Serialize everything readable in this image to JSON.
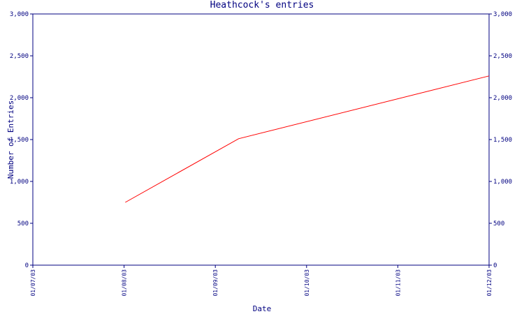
{
  "chart_data": {
    "type": "line",
    "title": "Heathcock's entries",
    "xlabel": "Date",
    "ylabel": "Number of Entries",
    "x_ticks": [
      "01/07/03",
      "01/08/03",
      "01/09/03",
      "01/10/03",
      "01/11/03",
      "01/12/03"
    ],
    "y_ticks": [
      "0",
      "500",
      "1,000",
      "1,500",
      "2,000",
      "2,500",
      "3,000"
    ],
    "ylim": [
      0,
      3000
    ],
    "xlim": [
      "2003-07-01",
      "2003-12-01"
    ],
    "grid": false,
    "series": [
      {
        "x": [
          "2003-08-01",
          "2003-09-08",
          "2003-12-01"
        ],
        "y": [
          750,
          1510,
          2260
        ]
      }
    ],
    "colors": {
      "axis": "#000080",
      "line": "#ff0000"
    }
  }
}
